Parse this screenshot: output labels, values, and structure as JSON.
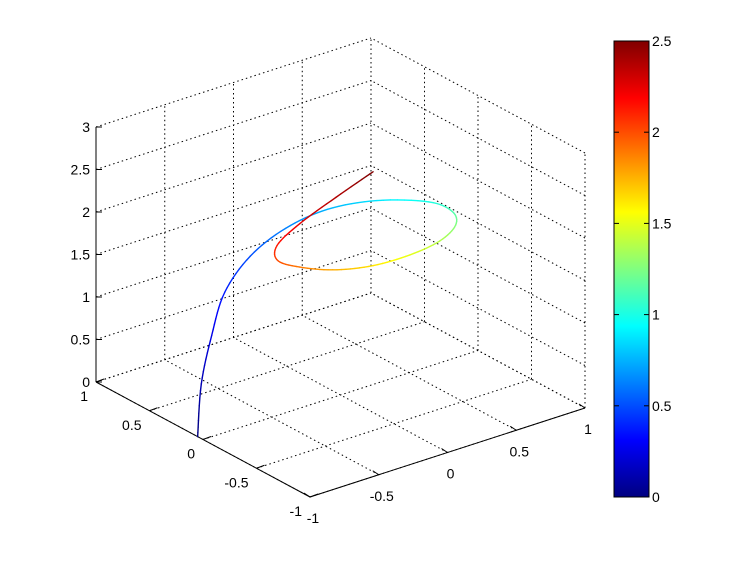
{
  "chart_data": {
    "type": "line",
    "subtype": "3d-line",
    "title": "",
    "xlabel": "",
    "ylabel": "",
    "zlabel": "",
    "xlim": [
      -1,
      1
    ],
    "ylim": [
      -1,
      1
    ],
    "zlim": [
      0,
      3
    ],
    "grid": true,
    "colormap": "jet",
    "colorbar": {
      "position": "right",
      "clim": [
        0,
        2.5
      ],
      "ticks": [
        "0",
        "0.5",
        "1",
        "1.5",
        "2",
        "2.5"
      ]
    },
    "x_ticks": [
      "-1",
      "-0.5",
      "0",
      "0.5",
      "1"
    ],
    "y_ticks": [
      "-1",
      "-0.5",
      "0",
      "0.5",
      "1"
    ],
    "z_ticks": [
      "0",
      "0.5",
      "1",
      "1.5",
      "2",
      "2.5",
      "3"
    ],
    "series": [
      {
        "color_by": "t",
        "t": [
          0.0,
          0.125,
          0.25,
          0.375,
          0.5,
          0.625,
          0.75,
          0.875,
          1.0,
          1.125,
          1.25,
          1.375,
          1.5,
          1.625,
          1.75,
          1.875,
          2.0,
          2.125,
          2.25,
          2.375,
          2.5
        ],
        "x": [
          -1.0,
          -0.74,
          -0.47,
          -0.22,
          0.06,
          0.34,
          0.59,
          0.81,
          0.97,
          0.93,
          0.76,
          0.49,
          0.17,
          -0.15,
          -0.43,
          -0.65,
          -0.78,
          -0.75,
          -0.56,
          -0.29,
          -0.02
        ],
        "y": [
          0.05,
          0.35,
          0.6,
          0.8,
          0.92,
          0.95,
          0.88,
          0.7,
          0.42,
          0.15,
          -0.1,
          -0.3,
          -0.43,
          -0.5,
          -0.52,
          -0.49,
          -0.42,
          -0.37,
          -0.34,
          -0.33,
          -0.33
        ],
        "z": [
          0.0,
          0.28,
          0.54,
          0.78,
          0.98,
          1.14,
          1.28,
          1.39,
          1.48,
          1.57,
          1.67,
          1.76,
          1.85,
          1.94,
          2.05,
          2.17,
          2.27,
          2.4,
          2.54,
          2.7,
          2.86
        ]
      }
    ]
  }
}
